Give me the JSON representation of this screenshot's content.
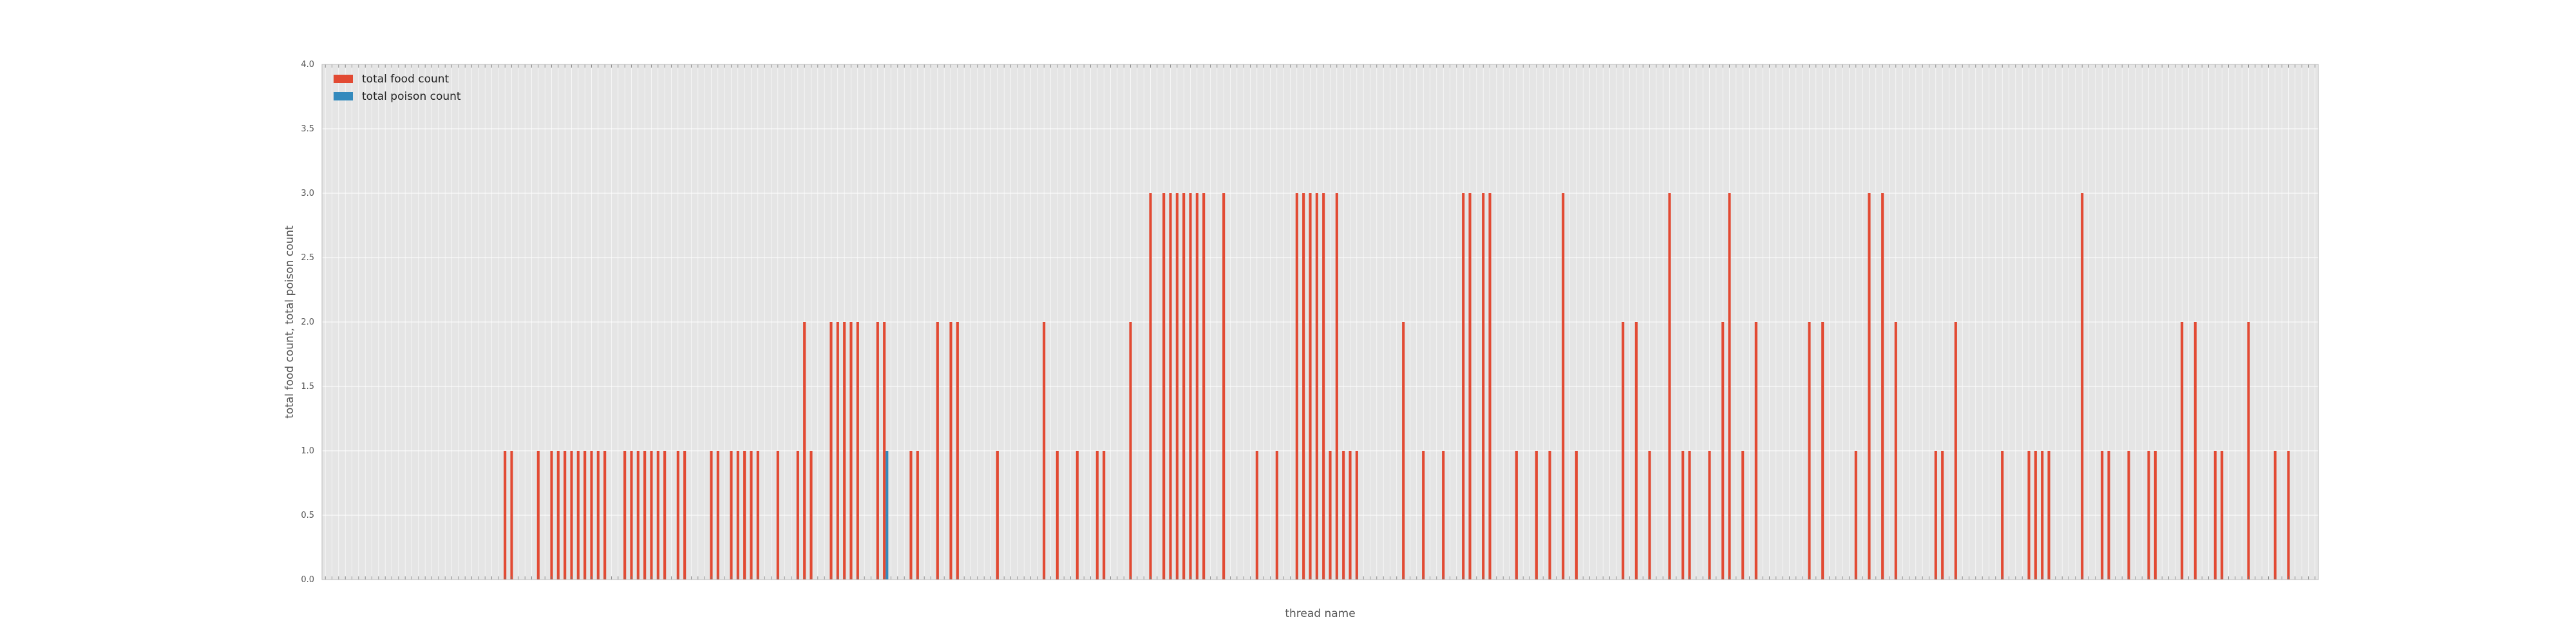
{
  "chart_data": {
    "type": "bar",
    "xlabel": "thread name",
    "ylabel": "total food count, total poison count",
    "ylim": [
      0,
      4.0
    ],
    "yticks": [
      "0.0",
      "0.5",
      "1.0",
      "1.5",
      "2.0",
      "2.5",
      "3.0",
      "3.5",
      "4.0"
    ],
    "category_count": 300,
    "legend_position": "top-left",
    "grid": true,
    "background": "#e5e5e5",
    "colors": {
      "food": "#e24a33",
      "poison": "#348abd"
    },
    "series": [
      {
        "name": "total food count",
        "values": [
          0,
          0,
          0,
          0,
          0,
          0,
          0,
          0,
          0,
          0,
          0,
          0,
          0,
          0,
          0,
          0,
          0,
          0,
          0,
          0,
          0,
          0,
          0,
          0,
          0,
          0,
          0,
          1,
          1,
          0,
          0,
          0,
          1,
          0,
          1,
          1,
          1,
          1,
          1,
          1,
          1,
          1,
          1,
          0,
          0,
          1,
          1,
          1,
          1,
          1,
          1,
          1,
          0,
          1,
          1,
          0,
          0,
          0,
          1,
          1,
          0,
          1,
          1,
          1,
          1,
          1,
          0,
          0,
          1,
          0,
          0,
          1,
          2,
          1,
          0,
          0,
          2,
          2,
          2,
          2,
          2,
          0,
          0,
          2,
          2,
          0,
          0,
          0,
          1,
          1,
          0,
          0,
          2,
          0,
          2,
          2,
          0,
          0,
          0,
          0,
          0,
          1,
          0,
          0,
          0,
          0,
          0,
          0,
          2,
          0,
          1,
          0,
          0,
          1,
          0,
          0,
          1,
          1,
          0,
          0,
          0,
          2,
          0,
          0,
          3,
          0,
          3,
          3,
          3,
          3,
          3,
          3,
          3,
          0,
          0,
          3,
          0,
          0,
          0,
          0,
          1,
          0,
          0,
          1,
          0,
          0,
          3,
          3,
          3,
          3,
          3,
          1,
          3,
          1,
          1,
          1,
          0,
          0,
          0,
          0,
          0,
          0,
          2,
          0,
          0,
          1,
          0,
          0,
          1,
          0,
          0,
          3,
          3,
          0,
          3,
          3,
          0,
          0,
          0,
          1,
          0,
          0,
          1,
          0,
          1,
          0,
          3,
          0,
          1,
          0,
          0,
          0,
          0,
          0,
          0,
          2,
          0,
          2,
          0,
          1,
          0,
          0,
          3,
          0,
          1,
          1,
          0,
          0,
          1,
          0,
          2,
          3,
          0,
          1,
          0,
          2,
          0,
          0,
          0,
          0,
          0,
          0,
          0,
          2,
          0,
          2,
          0,
          0,
          0,
          0,
          1,
          0,
          3,
          0,
          3,
          0,
          2,
          0,
          0,
          0,
          0,
          0,
          1,
          1,
          0,
          2,
          0,
          0,
          0,
          0,
          0,
          0,
          1,
          0,
          0,
          0,
          1,
          1,
          1,
          1,
          0,
          0,
          0,
          0,
          3,
          0,
          0,
          1,
          1,
          0,
          0,
          1,
          0,
          0,
          1,
          1,
          0,
          0,
          0,
          2,
          0,
          2,
          0,
          0,
          1,
          1,
          0,
          0,
          0,
          2,
          0,
          0,
          0,
          1,
          0,
          1,
          0,
          0,
          0,
          0,
          0,
          0,
          0,
          0,
          0,
          0
        ],
        "_note_ignore": ""
      },
      {
        "name": "total poison count",
        "values_at": {
          "84": 1
        }
      }
    ]
  }
}
